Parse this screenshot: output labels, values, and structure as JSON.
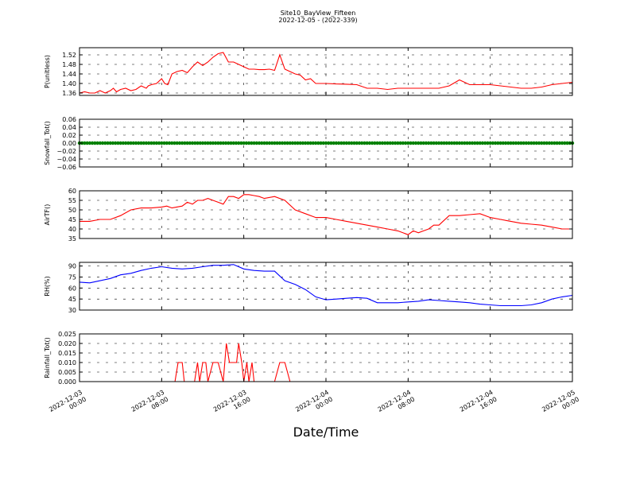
{
  "title": "Site10_BayView_Fifteen",
  "subtitle": "2022-12-05 - (2022-339)",
  "xlabel": "Date/Time",
  "x_ticks": [
    "2022-12-03 00:00",
    "2022-12-03 08:00",
    "2022-12-03 16:00",
    "2022-12-04 00:00",
    "2022-12-04 08:00",
    "2022-12-04 16:00",
    "2022-12-05 00:00"
  ],
  "chart_data": [
    {
      "type": "line",
      "ylabel": "P(unitless)",
      "ylim": [
        1.35,
        1.55
      ],
      "yticks": [
        "1.36",
        "1.40",
        "1.44",
        "1.48",
        "1.52"
      ],
      "grid": true,
      "color": "#ff0000",
      "x_hours": [
        0,
        0.5,
        1,
        1.5,
        2,
        2.5,
        3,
        3.3,
        3.6,
        4,
        4.5,
        5,
        5.5,
        6,
        6.5,
        6.7,
        7,
        7.5,
        8,
        8.3,
        8.6,
        9,
        9.5,
        10,
        10.5,
        11,
        11.5,
        12,
        12.5,
        13,
        13.5,
        14,
        14.5,
        15,
        15.5,
        16,
        16.5,
        17,
        17.5,
        18,
        18.5,
        19,
        19.5,
        20,
        20.5,
        21,
        21.5,
        22,
        22.5,
        23,
        23.5,
        24,
        25,
        26,
        27,
        28,
        29,
        30,
        31,
        32,
        33,
        34,
        35,
        36,
        37,
        38,
        39,
        40,
        41,
        42,
        43,
        44,
        45,
        46,
        47,
        48
      ],
      "values": [
        1.36,
        1.365,
        1.36,
        1.36,
        1.37,
        1.36,
        1.37,
        1.38,
        1.365,
        1.375,
        1.38,
        1.37,
        1.375,
        1.39,
        1.38,
        1.39,
        1.395,
        1.4,
        1.42,
        1.4,
        1.395,
        1.44,
        1.45,
        1.455,
        1.445,
        1.47,
        1.49,
        1.475,
        1.49,
        1.51,
        1.525,
        1.53,
        1.49,
        1.49,
        1.48,
        1.47,
        1.46,
        1.46,
        1.458,
        1.458,
        1.46,
        1.455,
        1.52,
        1.46,
        1.45,
        1.44,
        1.435,
        1.415,
        1.42,
        1.4,
        1.4,
        1.4,
        1.398,
        1.397,
        1.395,
        1.38,
        1.38,
        1.375,
        1.38,
        1.38,
        1.38,
        1.38,
        1.38,
        1.39,
        1.415,
        1.395,
        1.395,
        1.395,
        1.39,
        1.385,
        1.38,
        1.38,
        1.385,
        1.395,
        1.4,
        1.405
      ]
    },
    {
      "type": "scatter",
      "ylabel": "Snowfall_Tot()",
      "ylim": [
        -0.06,
        0.06
      ],
      "yticks": [
        "−0.06",
        "−0.04",
        "−0.02",
        "0.00",
        "0.02",
        "0.04",
        "0.06"
      ],
      "grid": true,
      "color": "#008000",
      "constant_value": 0.0
    },
    {
      "type": "line",
      "ylabel": "AirTF()",
      "ylim": [
        35,
        60
      ],
      "yticks": [
        "35",
        "40",
        "45",
        "50",
        "55",
        "60"
      ],
      "grid": true,
      "color": "#ff0000",
      "x_hours": [
        0,
        1,
        2,
        3,
        4,
        5,
        6,
        7,
        8,
        8.5,
        9,
        10,
        10.5,
        11,
        11.5,
        12,
        12.5,
        13,
        13.5,
        14,
        14.5,
        15,
        15.5,
        16,
        16.5,
        17,
        17.5,
        18,
        19,
        20,
        21,
        22,
        23,
        24,
        25,
        26,
        27,
        28,
        29,
        30,
        31,
        32,
        32.5,
        33,
        33.5,
        34,
        34.5,
        35,
        36,
        37,
        38,
        39,
        40,
        41,
        42,
        43,
        44,
        45,
        46,
        47,
        48
      ],
      "values": [
        44,
        44,
        45,
        45,
        47,
        50,
        51,
        51,
        51.5,
        52,
        51,
        52,
        54,
        53,
        55,
        55,
        56,
        55,
        54,
        53,
        57,
        57,
        56,
        58,
        58,
        57.5,
        57,
        56,
        57,
        55,
        50,
        48,
        46,
        46,
        45,
        44,
        43,
        42,
        41,
        40,
        39,
        37,
        39,
        38,
        39,
        40,
        42,
        42,
        47,
        47,
        47.5,
        48,
        46,
        45,
        44,
        43,
        42.5,
        42,
        41,
        40,
        40
      ]
    },
    {
      "type": "line",
      "ylabel": "RH(%)",
      "ylim": [
        30,
        95
      ],
      "yticks": [
        "30",
        "45",
        "60",
        "75",
        "90"
      ],
      "grid": true,
      "color": "#0000ff",
      "x_hours": [
        0,
        1,
        2,
        3,
        4,
        5,
        6,
        7,
        8,
        9,
        10,
        11,
        12,
        13,
        14,
        15,
        16,
        17,
        18,
        19,
        20,
        21,
        22,
        23,
        24,
        25,
        26,
        27,
        28,
        29,
        30,
        31,
        32,
        33,
        34,
        35,
        36,
        37,
        38,
        39,
        40,
        41,
        42,
        43,
        44,
        45,
        46,
        47,
        48
      ],
      "values": [
        68,
        67,
        70,
        73,
        78,
        80,
        84,
        87,
        89,
        87,
        86,
        87,
        89,
        91,
        91,
        92,
        86,
        84,
        83,
        83,
        70,
        65,
        58,
        48,
        44,
        45,
        46,
        47,
        46,
        40,
        40,
        40,
        41,
        42,
        44,
        43,
        42,
        41,
        40,
        38,
        37,
        36,
        36,
        36,
        37,
        40,
        45,
        48,
        50
      ]
    },
    {
      "type": "line",
      "ylabel": "Rainfall_Tot()",
      "ylim": [
        0,
        0.025
      ],
      "yticks": [
        "0.000",
        "0.005",
        "0.010",
        "0.015",
        "0.020",
        "0.025"
      ],
      "grid": true,
      "color": "#ff0000",
      "x_hours": [
        0,
        9.3,
        9.6,
        10,
        10.2,
        11.2,
        11.5,
        11.7,
        12,
        12.3,
        12.5,
        13,
        13.5,
        14,
        14.3,
        14.6,
        15,
        15.3,
        15.5,
        15.8,
        16,
        16.3,
        16.5,
        16.8,
        17,
        17.3,
        17.5,
        18,
        19,
        19.5,
        20,
        20.5,
        21,
        48
      ],
      "values": [
        0,
        0,
        0.01,
        0.01,
        0,
        0,
        0.01,
        0,
        0.01,
        0.01,
        0,
        0.01,
        0.01,
        0,
        0.02,
        0.01,
        0.01,
        0.01,
        0.02,
        0.01,
        0,
        0.01,
        0,
        0.01,
        0,
        0,
        0,
        0,
        0,
        0.01,
        0.01,
        0,
        0,
        0
      ]
    }
  ]
}
